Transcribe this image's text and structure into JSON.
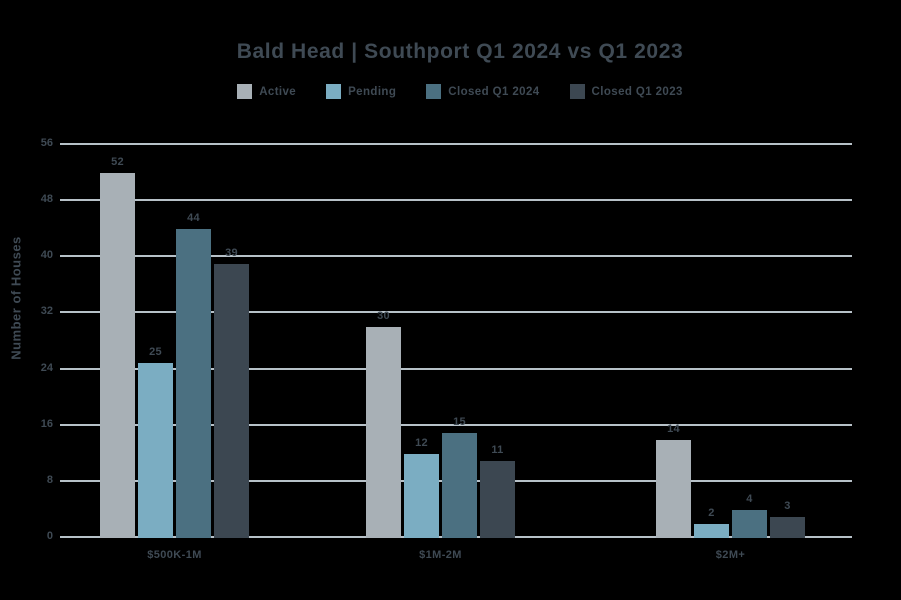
{
  "chart_data": {
    "type": "bar",
    "title": "Bald Head | Southport Q1 2024 vs Q1 2023",
    "ylabel": "Number of Houses",
    "xlabel": "",
    "categories": [
      "$500K-1M",
      "$1M-2M",
      "$2M+"
    ],
    "series": [
      {
        "name": "Active",
        "color": "#a8b0b6",
        "values": [
          52,
          30,
          14
        ]
      },
      {
        "name": "Pending",
        "color": "#7badc2",
        "values": [
          25,
          12,
          2
        ]
      },
      {
        "name": "Closed Q1 2024",
        "color": "#4b7081",
        "values": [
          44,
          15,
          4
        ]
      },
      {
        "name": "Closed Q1 2023",
        "color": "#3c4751",
        "values": [
          39,
          11,
          3
        ]
      }
    ],
    "yticks": [
      0,
      8,
      16,
      24,
      32,
      40,
      48,
      56
    ],
    "ylim": [
      0,
      56
    ],
    "grid": true,
    "legend_position": "top",
    "colors": {
      "background": "#000000",
      "text": "#3f4a54",
      "gridline": "#b7c1c8"
    }
  }
}
